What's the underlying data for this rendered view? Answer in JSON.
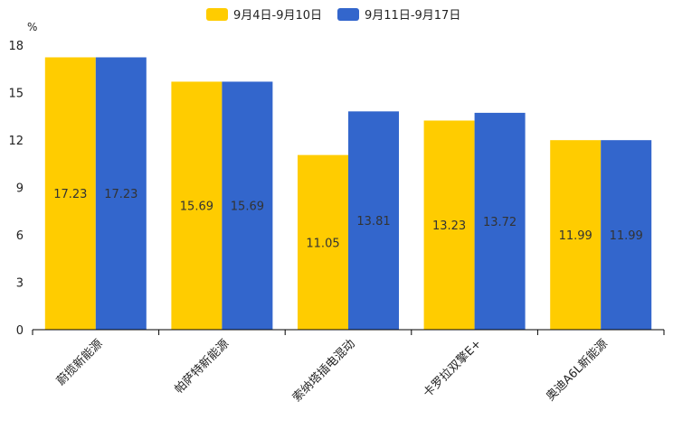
{
  "chart_data": {
    "type": "bar",
    "unit": "%",
    "categories": [
      "蔚揽新能源",
      "帕萨特新能源",
      "索纳塔插电混动",
      "卡罗拉双擎E+",
      "奥迪A6L新能源"
    ],
    "series": [
      {
        "name": "9月4日-9月10日",
        "color": "#FFCC00",
        "values": [
          17.23,
          15.69,
          11.05,
          13.23,
          11.99
        ],
        "labels": [
          "17.23",
          "15.69",
          "11.05",
          "13.23",
          "11.99"
        ]
      },
      {
        "name": "9月11日-9月17日",
        "color": "#3366CC",
        "values": [
          17.23,
          15.69,
          13.81,
          13.72,
          11.99
        ],
        "labels": [
          "17.23",
          "15.69",
          "13.81",
          "13.72",
          "11.99"
        ]
      }
    ],
    "y_ticks": [
      "0",
      "3",
      "6",
      "9",
      "12",
      "15",
      "18"
    ],
    "ylim": [
      0,
      18
    ],
    "legend_position": "top-center",
    "grid": false
  }
}
